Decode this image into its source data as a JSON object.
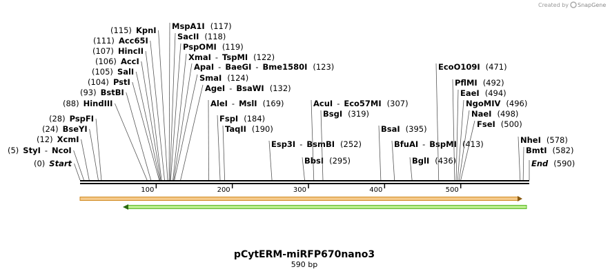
{
  "watermark": {
    "prefix": "Created by",
    "brand": "SnapGene"
  },
  "title": "pCytERM-miRFP670nano3",
  "size": {
    "value": 590,
    "label": "590 bp"
  },
  "separator": "-",
  "start": {
    "name": "Start",
    "position": {
      "value": 0,
      "label": "(0)"
    }
  },
  "end": {
    "name": "End",
    "position": {
      "value": 590,
      "label": "(590)"
    }
  },
  "ruler": {
    "ticks": [
      100,
      200,
      300,
      400,
      500
    ]
  },
  "sites": [
    {
      "enzymes": [
        "StyI",
        "NcoI"
      ],
      "position": {
        "value": 5,
        "label": "(5)"
      }
    },
    {
      "enzymes": [
        "XcmI"
      ],
      "position": {
        "value": 12,
        "label": "(12)"
      }
    },
    {
      "enzymes": [
        "BseYI"
      ],
      "position": {
        "value": 24,
        "label": "(24)"
      }
    },
    {
      "enzymes": [
        "PspFI"
      ],
      "position": {
        "value": 28,
        "label": "(28)"
      }
    },
    {
      "enzymes": [
        "HindIII"
      ],
      "position": {
        "value": 88,
        "label": "(88)"
      }
    },
    {
      "enzymes": [
        "BstBI"
      ],
      "position": {
        "value": 93,
        "label": "(93)"
      }
    },
    {
      "enzymes": [
        "PstI"
      ],
      "position": {
        "value": 104,
        "label": "(104)"
      }
    },
    {
      "enzymes": [
        "SalI"
      ],
      "position": {
        "value": 105,
        "label": "(105)"
      }
    },
    {
      "enzymes": [
        "AccI"
      ],
      "position": {
        "value": 106,
        "label": "(106)"
      }
    },
    {
      "enzymes": [
        "HincII"
      ],
      "position": {
        "value": 107,
        "label": "(107)"
      }
    },
    {
      "enzymes": [
        "Acc65I"
      ],
      "position": {
        "value": 111,
        "label": "(111)"
      }
    },
    {
      "enzymes": [
        "KpnI"
      ],
      "position": {
        "value": 115,
        "label": "(115)"
      }
    },
    {
      "enzymes": [
        "MspA1I"
      ],
      "position": {
        "value": 117,
        "label": "(117)"
      }
    },
    {
      "enzymes": [
        "SacII"
      ],
      "position": {
        "value": 118,
        "label": "(118)"
      }
    },
    {
      "enzymes": [
        "PspOMI"
      ],
      "position": {
        "value": 119,
        "label": "(119)"
      }
    },
    {
      "enzymes": [
        "XmaI",
        "TspMI"
      ],
      "position": {
        "value": 122,
        "label": "(122)"
      }
    },
    {
      "enzymes": [
        "ApaI",
        "BaeGI",
        "Bme1580I"
      ],
      "position": {
        "value": 123,
        "label": "(123)"
      }
    },
    {
      "enzymes": [
        "SmaI"
      ],
      "position": {
        "value": 124,
        "label": "(124)"
      }
    },
    {
      "enzymes": [
        "AgeI",
        "BsaWI"
      ],
      "position": {
        "value": 132,
        "label": "(132)"
      }
    },
    {
      "enzymes": [
        "AleI",
        "MslI"
      ],
      "position": {
        "value": 169,
        "label": "(169)"
      }
    },
    {
      "enzymes": [
        "FspI"
      ],
      "position": {
        "value": 184,
        "label": "(184)"
      }
    },
    {
      "enzymes": [
        "TaqII"
      ],
      "position": {
        "value": 190,
        "label": "(190)"
      }
    },
    {
      "enzymes": [
        "Esp3I",
        "BsmBI"
      ],
      "position": {
        "value": 252,
        "label": "(252)"
      }
    },
    {
      "enzymes": [
        "BbsI"
      ],
      "position": {
        "value": 295,
        "label": "(295)"
      }
    },
    {
      "enzymes": [
        "AcuI",
        "Eco57MI"
      ],
      "position": {
        "value": 307,
        "label": "(307)"
      }
    },
    {
      "enzymes": [
        "BsgI"
      ],
      "position": {
        "value": 319,
        "label": "(319)"
      }
    },
    {
      "enzymes": [
        "BsaI"
      ],
      "position": {
        "value": 395,
        "label": "(395)"
      }
    },
    {
      "enzymes": [
        "BfuAI",
        "BspMI"
      ],
      "position": {
        "value": 413,
        "label": "(413)"
      }
    },
    {
      "enzymes": [
        "BglI"
      ],
      "position": {
        "value": 436,
        "label": "(436)"
      }
    },
    {
      "enzymes": [
        "EcoO109I"
      ],
      "position": {
        "value": 471,
        "label": "(471)"
      }
    },
    {
      "enzymes": [
        "PflMI"
      ],
      "position": {
        "value": 492,
        "label": "(492)"
      }
    },
    {
      "enzymes": [
        "EaeI"
      ],
      "position": {
        "value": 494,
        "label": "(494)"
      }
    },
    {
      "enzymes": [
        "NgoMIV"
      ],
      "position": {
        "value": 496,
        "label": "(496)"
      }
    },
    {
      "enzymes": [
        "NaeI"
      ],
      "position": {
        "value": 498,
        "label": "(498)"
      }
    },
    {
      "enzymes": [
        "FseI"
      ],
      "position": {
        "value": 500,
        "label": "(500)"
      }
    },
    {
      "enzymes": [
        "NheI"
      ],
      "position": {
        "value": 578,
        "label": "(578)"
      }
    },
    {
      "enzymes": [
        "BmtI"
      ],
      "position": {
        "value": 582,
        "label": "(582)"
      }
    }
  ]
}
